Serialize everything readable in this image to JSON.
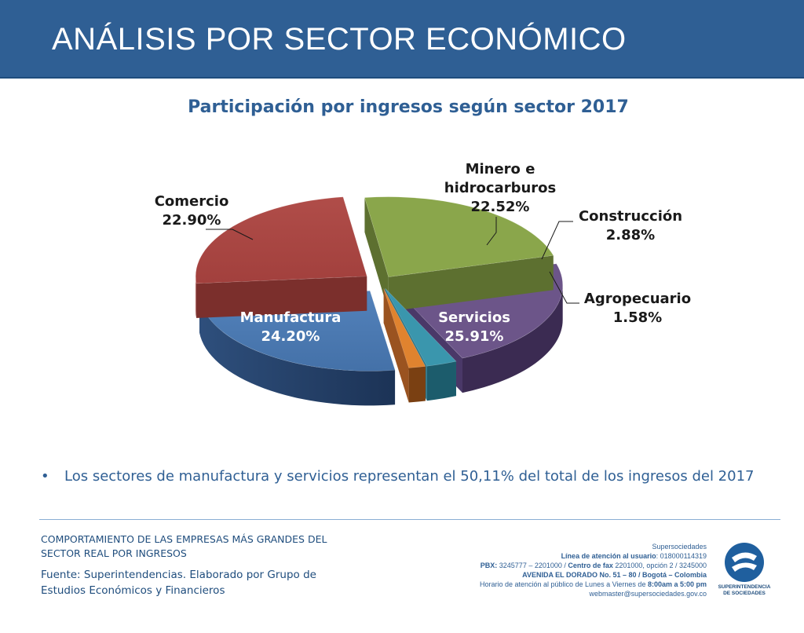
{
  "header": {
    "title": "ANÁLISIS POR SECTOR ECONÓMICO"
  },
  "colors": {
    "header_bg": "#2f5f94",
    "text_blue": "#2f5f94",
    "comercio": "#8aa64b",
    "minero": "#6c5589",
    "construccion": "#3a96ad",
    "agropecuario": "#e0832f",
    "servicios": "#4a77ae",
    "manufactura": "#a64542"
  },
  "chart_data": {
    "type": "pie",
    "title": "Participación por ingresos según sector 2017",
    "slices": [
      {
        "name": "Comercio",
        "value": 22.9,
        "label": "22.90%"
      },
      {
        "name": "Minero e hidrocarburos",
        "value": 22.52,
        "label": "22.52%"
      },
      {
        "name": "Construcción",
        "value": 2.88,
        "label": "2.88%"
      },
      {
        "name": "Agropecuario",
        "value": 1.58,
        "label": "1.58%"
      },
      {
        "name": "Servicios",
        "value": 25.91,
        "label": "25.91%"
      },
      {
        "name": "Manufactura",
        "value": 24.2,
        "label": "24.20%"
      }
    ],
    "label_lines": {
      "comercio": [
        "Comercio",
        "22.90%"
      ],
      "minero": [
        "Minero e",
        "hidrocarburos",
        "22.52%"
      ],
      "construccion": [
        "Construcción",
        "2.88%"
      ],
      "agropecuario": [
        "Agropecuario",
        "1.58%"
      ],
      "servicios": [
        "Servicios",
        "25.91%"
      ],
      "manufactura": [
        "Manufactura",
        "24.20%"
      ]
    }
  },
  "bullet": {
    "marker": "•",
    "text": "Los sectores de manufactura y servicios representan el 50,11% del total de los ingresos del 2017"
  },
  "footer": {
    "left_title_1": "COMPORTAMIENTO DE LAS EMPRESAS MÁS GRANDES DEL",
    "left_title_2": "SECTOR REAL POR INGRESOS",
    "source_1": "Fuente: Superintendencias. Elaborado por Grupo de",
    "source_2": "Estudios Económicos y Financieros",
    "right": {
      "line1": "Supersociedades",
      "line2_bold": "Línea de atención al usuario",
      "line2_rest": ": 018000114319",
      "line3_a_bold": "PBX:",
      "line3_a": " 3245777 – 2201000 / ",
      "line3_b_bold": "Centro de fax",
      "line3_b": " 2201000, opción 2 / 3245000",
      "line4_bold": "AVENIDA EL DORADO No. 51 – 80 / Bogotá – Colombia",
      "line5_a": "Horario de atención al público de Lunes a Viernes de ",
      "line5_bold": "8:00am a 5:00 pm",
      "line6": "webmaster@supersociedades.gov.co"
    },
    "logo_text_1": "SUPERINTENDENCIA",
    "logo_text_2": "DE SOCIEDADES"
  }
}
